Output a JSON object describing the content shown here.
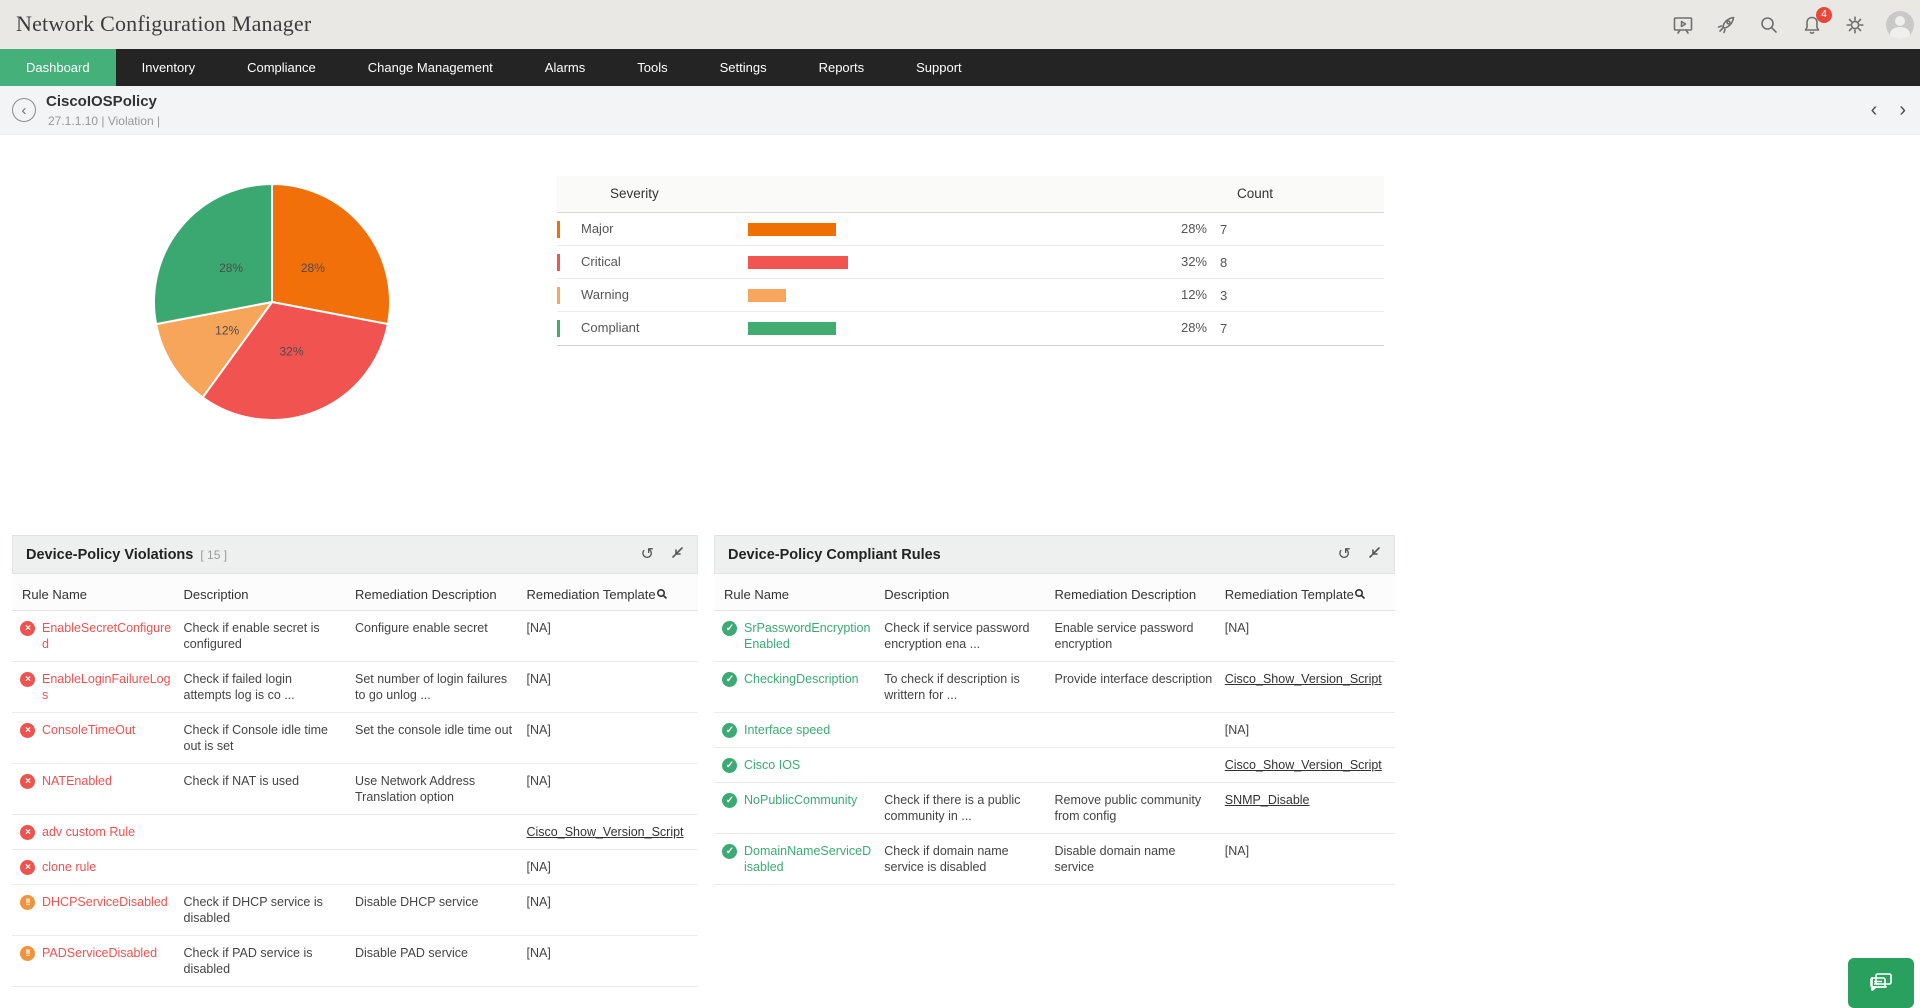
{
  "header": {
    "title": "Network Configuration Manager",
    "notification_count": "4",
    "icons": [
      "presentation-icon",
      "rocket-icon",
      "search-icon",
      "bell-icon",
      "gear-icon",
      "avatar"
    ]
  },
  "nav": {
    "tabs": [
      {
        "label": "Dashboard",
        "active": true
      },
      {
        "label": "Inventory",
        "active": false
      },
      {
        "label": "Compliance",
        "active": false
      },
      {
        "label": "Change Management",
        "active": false
      },
      {
        "label": "Alarms",
        "active": false
      },
      {
        "label": "Tools",
        "active": false
      },
      {
        "label": "Settings",
        "active": false
      },
      {
        "label": "Reports",
        "active": false
      },
      {
        "label": "Support",
        "active": false
      }
    ]
  },
  "breadcrumb": {
    "title": "CiscoIOSPolicy",
    "subtitle": "27.1.1.10 | Violation  |",
    "back_glyph": "‹",
    "prev_glyph": "‹",
    "next_glyph": "›"
  },
  "chart_data": {
    "type": "pie",
    "title": "",
    "labels": [
      "Major",
      "Critical",
      "Warning",
      "Compliant"
    ],
    "values": [
      28,
      32,
      12,
      28
    ],
    "counts": [
      7,
      8,
      3,
      7
    ],
    "percent_labels": [
      "28%",
      "32%",
      "12%",
      "28%"
    ],
    "colors": [
      "#f2700a",
      "#f15450",
      "#f8a55c",
      "#3ca871"
    ],
    "start_angle_deg": 0,
    "direction": "clockwise",
    "legend_position": "none"
  },
  "severity_table": {
    "header_severity": "Severity",
    "header_count": "Count",
    "rows": [
      {
        "label": "Major",
        "percent": "28%",
        "count": "7",
        "value": 28,
        "color": "#ef7000"
      },
      {
        "label": "Critical",
        "percent": "32%",
        "count": "8",
        "value": 32,
        "color": "#f2544f"
      },
      {
        "label": "Warning",
        "percent": "12%",
        "count": "3",
        "value": 12,
        "color": "#f8a55d"
      },
      {
        "label": "Compliant",
        "percent": "28%",
        "count": "7",
        "value": 28,
        "color": "#41ab70"
      }
    ]
  },
  "violations_panel": {
    "title": "Device-Policy Violations",
    "count": "[ 15 ]",
    "columns": [
      "Rule Name",
      "Description",
      "Remediation Description",
      "Remediation Template"
    ],
    "rows": [
      {
        "severity": "critical",
        "rule": "EnableSecretConfigured",
        "description": "Check if enable secret is configured",
        "remediation": "Configure enable secret",
        "template": "[NA]",
        "template_is_link": false
      },
      {
        "severity": "critical",
        "rule": "EnableLoginFailureLogs",
        "description": "Check if failed login attempts log is co ...",
        "remediation": "Set number of login failures to go unlog ...",
        "template": "[NA]",
        "template_is_link": false
      },
      {
        "severity": "critical",
        "rule": "ConsoleTimeOut",
        "description": "Check if Console idle time out is set",
        "remediation": "Set the console idle time out",
        "template": "[NA]",
        "template_is_link": false
      },
      {
        "severity": "critical",
        "rule": "NATEnabled",
        "description": "Check if NAT is used",
        "remediation": "Use Network Address Translation option",
        "template": "[NA]",
        "template_is_link": false
      },
      {
        "severity": "critical",
        "rule": "adv custom Rule",
        "description": "",
        "remediation": "",
        "template": "Cisco_Show_Version_Script",
        "template_is_link": true
      },
      {
        "severity": "critical",
        "rule": "clone rule",
        "description": "",
        "remediation": "",
        "template": "[NA]",
        "template_is_link": false
      },
      {
        "severity": "major",
        "rule": "DHCPServiceDisabled",
        "description": "Check if DHCP service is disabled",
        "remediation": "Disable DHCP service",
        "template": "[NA]",
        "template_is_link": false
      },
      {
        "severity": "major",
        "rule": "PADServiceDisabled",
        "description": "Check if PAD service is disabled",
        "remediation": "Disable PAD service",
        "template": "[NA]",
        "template_is_link": false
      }
    ]
  },
  "compliant_panel": {
    "title": "Device-Policy Compliant Rules",
    "count": "",
    "columns": [
      "Rule Name",
      "Description",
      "Remediation Description",
      "Remediation Template"
    ],
    "rows": [
      {
        "severity": "compliant",
        "rule": "SrPasswordEncryptionEnabled",
        "description": "Check if service password encryption ena ...",
        "remediation": "Enable service password encryption",
        "template": "[NA]",
        "template_is_link": false
      },
      {
        "severity": "compliant",
        "rule": "CheckingDescription",
        "description": "To check if description is writtern for  ...",
        "remediation": "Provide interface description",
        "template": "Cisco_Show_Version_Script",
        "template_is_link": true
      },
      {
        "severity": "compliant",
        "rule": "Interface speed",
        "description": "",
        "remediation": "",
        "template": "[NA]",
        "template_is_link": false
      },
      {
        "severity": "compliant",
        "rule": "Cisco IOS",
        "description": "",
        "remediation": "",
        "template": "Cisco_Show_Version_Script",
        "template_is_link": true
      },
      {
        "severity": "compliant",
        "rule": "NoPublicCommunity",
        "description": "Check if there is a public community in  ...",
        "remediation": "Remove public community from config",
        "template": "SNMP_Disable",
        "template_is_link": true
      },
      {
        "severity": "compliant",
        "rule": "DomainNameServiceDisabled",
        "description": "Check if domain name service is disabled",
        "remediation": "Disable domain name service",
        "template": "[NA]",
        "template_is_link": false
      }
    ]
  },
  "icon_glyphs": {
    "critical": "×",
    "major": "!!",
    "compliant": "✓",
    "refresh": "↺"
  },
  "theme": {
    "nav_bg": "#242424",
    "active_tab_green": "#46b07a",
    "header_bg": "#e9e8e5",
    "critical_red": "#ef5350",
    "major_orange": "#f0943c",
    "compliant_green": "#3cab73",
    "chat_green": "#29a05e",
    "badge_red": "#e8483a"
  }
}
